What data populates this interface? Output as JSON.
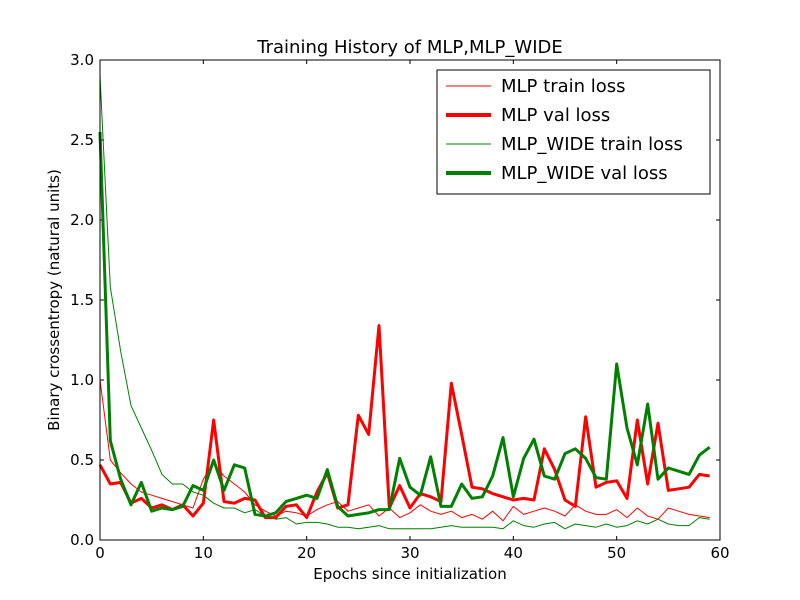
{
  "chart_data": {
    "type": "line",
    "title": "Training History of MLP,MLP_WIDE",
    "xlabel": "Epochs since initialization",
    "ylabel": "Binary crossentropy (natural units)",
    "xlim": [
      0,
      60
    ],
    "ylim": [
      0.0,
      3.0
    ],
    "x_ticks": [
      0,
      10,
      20,
      30,
      40,
      50,
      60
    ],
    "x_tick_labels": [
      "0",
      "10",
      "20",
      "30",
      "40",
      "50",
      "60"
    ],
    "y_ticks": [
      0.0,
      0.5,
      1.0,
      1.5,
      2.0,
      2.5,
      3.0
    ],
    "y_tick_labels": [
      "0.0",
      "0.5",
      "1.0",
      "1.5",
      "2.0",
      "2.5",
      "3.0"
    ],
    "grid": false,
    "legend_position": "top-right",
    "x": [
      0,
      1,
      2,
      3,
      4,
      5,
      6,
      7,
      8,
      9,
      10,
      11,
      12,
      13,
      14,
      15,
      16,
      17,
      18,
      19,
      20,
      21,
      22,
      23,
      24,
      25,
      26,
      27,
      28,
      29,
      30,
      31,
      32,
      33,
      34,
      35,
      36,
      37,
      38,
      39,
      40,
      41,
      42,
      43,
      44,
      45,
      46,
      47,
      48,
      49,
      50,
      51,
      52,
      53,
      54,
      55,
      56,
      57,
      58,
      59
    ],
    "series": [
      {
        "name": "MLP train loss",
        "color": "#ff0000",
        "width": 1,
        "values": [
          1.0,
          0.5,
          0.42,
          0.35,
          0.3,
          0.28,
          0.26,
          0.24,
          0.22,
          0.2,
          0.38,
          0.48,
          0.4,
          0.35,
          0.3,
          0.22,
          0.18,
          0.15,
          0.18,
          0.17,
          0.15,
          0.19,
          0.22,
          0.24,
          0.18,
          0.2,
          0.22,
          0.15,
          0.2,
          0.14,
          0.17,
          0.22,
          0.18,
          0.16,
          0.18,
          0.14,
          0.16,
          0.13,
          0.18,
          0.12,
          0.21,
          0.16,
          0.18,
          0.2,
          0.18,
          0.15,
          0.22,
          0.18,
          0.16,
          0.16,
          0.19,
          0.14,
          0.2,
          0.15,
          0.13,
          0.2,
          0.18,
          0.16,
          0.15,
          0.14
        ]
      },
      {
        "name": "MLP val loss",
        "color": "#ff0000",
        "width": 3,
        "values": [
          0.47,
          0.35,
          0.36,
          0.23,
          0.26,
          0.2,
          0.22,
          0.19,
          0.22,
          0.15,
          0.23,
          0.75,
          0.24,
          0.23,
          0.26,
          0.25,
          0.14,
          0.14,
          0.21,
          0.22,
          0.14,
          0.3,
          0.42,
          0.2,
          0.22,
          0.78,
          0.66,
          1.34,
          0.2,
          0.34,
          0.2,
          0.29,
          0.27,
          0.24,
          0.98,
          0.66,
          0.33,
          0.32,
          0.29,
          0.27,
          0.25,
          0.26,
          0.25,
          0.57,
          0.44,
          0.25,
          0.21,
          0.77,
          0.33,
          0.36,
          0.37,
          0.26,
          0.75,
          0.35,
          0.73,
          0.31,
          0.32,
          0.33,
          0.41,
          0.4
        ]
      },
      {
        "name": "MLP_WIDE train loss",
        "color": "#008000",
        "width": 1,
        "values": [
          2.9,
          1.58,
          1.18,
          0.84,
          0.7,
          0.56,
          0.41,
          0.35,
          0.35,
          0.3,
          0.28,
          0.23,
          0.2,
          0.2,
          0.17,
          0.19,
          0.15,
          0.13,
          0.14,
          0.1,
          0.11,
          0.11,
          0.1,
          0.08,
          0.08,
          0.07,
          0.08,
          0.09,
          0.07,
          0.07,
          0.07,
          0.07,
          0.07,
          0.08,
          0.09,
          0.08,
          0.08,
          0.08,
          0.08,
          0.07,
          0.12,
          0.09,
          0.08,
          0.1,
          0.11,
          0.07,
          0.1,
          0.09,
          0.08,
          0.1,
          0.08,
          0.09,
          0.12,
          0.1,
          0.13,
          0.1,
          0.09,
          0.09,
          0.14,
          0.13
        ]
      },
      {
        "name": "MLP_WIDE val loss",
        "color": "#008000",
        "width": 3,
        "values": [
          2.55,
          0.62,
          0.38,
          0.22,
          0.36,
          0.18,
          0.2,
          0.19,
          0.21,
          0.34,
          0.31,
          0.5,
          0.31,
          0.47,
          0.45,
          0.16,
          0.15,
          0.17,
          0.24,
          0.26,
          0.28,
          0.26,
          0.44,
          0.21,
          0.15,
          0.16,
          0.17,
          0.19,
          0.19,
          0.51,
          0.33,
          0.28,
          0.52,
          0.21,
          0.21,
          0.35,
          0.26,
          0.27,
          0.4,
          0.64,
          0.27,
          0.51,
          0.63,
          0.4,
          0.38,
          0.54,
          0.57,
          0.51,
          0.39,
          0.38,
          1.1,
          0.7,
          0.47,
          0.85,
          0.38,
          0.45,
          0.43,
          0.41,
          0.53,
          0.58
        ]
      }
    ]
  }
}
